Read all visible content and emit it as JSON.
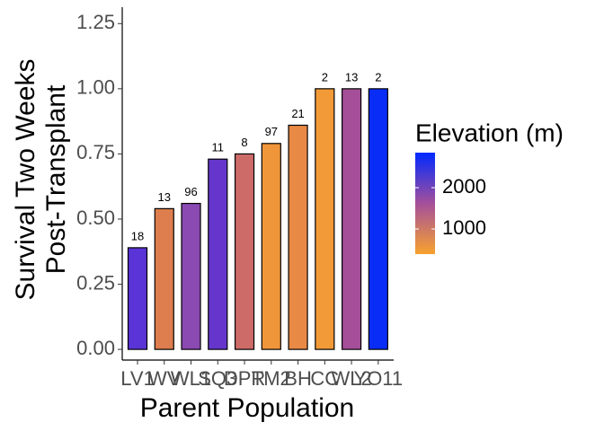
{
  "chart_data": {
    "type": "bar",
    "x_label": "Parent Population",
    "y_label": [
      "Survival Two Weeks",
      "Post-Transplant"
    ],
    "categories": [
      "LV1",
      "WV",
      "WL1",
      "SQ3",
      "DPR",
      "TM2",
      "BH",
      "CC",
      "WL2",
      "YO11"
    ],
    "values": [
      0.39,
      0.54,
      0.56,
      0.73,
      0.75,
      0.79,
      0.86,
      1.0,
      1.0,
      1.0
    ],
    "bar_labels": [
      18,
      13,
      96,
      11,
      8,
      97,
      21,
      2,
      13,
      2
    ],
    "colors": [
      "#5a34d6",
      "#de7d4e",
      "#8a4ab2",
      "#6636cc",
      "#cc6b68",
      "#f0963a",
      "#e88945",
      "#f29a38",
      "#a44f98",
      "#0a2cf7"
    ],
    "ylim": [
      -0.041,
      1.313
    ],
    "yticks": [
      {
        "value": 0,
        "label": "0.00"
      },
      {
        "value": 0.25,
        "label": "0.25"
      },
      {
        "value": 0.5,
        "label": "0.50"
      },
      {
        "value": 0.75,
        "label": "0.75"
      },
      {
        "value": 1,
        "label": "1.00"
      },
      {
        "value": 1.25,
        "label": "1.25"
      }
    ],
    "colorbar": {
      "title": "Elevation (m)",
      "lim": [
        391,
        2848
      ],
      "ticks": [
        1000,
        2000
      ],
      "colors": [
        "#f7a22e",
        "#a5509a",
        "#0029ff"
      ]
    }
  }
}
